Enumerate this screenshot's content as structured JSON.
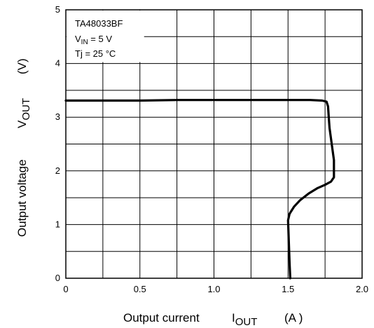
{
  "chart_data": {
    "type": "line",
    "xlabel": {
      "main": "Output current",
      "symbol": "I",
      "subscript": "OUT",
      "unit": "(A )"
    },
    "ylabel": {
      "main": "Output voltage",
      "symbol": "V",
      "subscript": "OUT",
      "unit": "(V)"
    },
    "xlim": [
      0,
      2.0
    ],
    "ylim": [
      0,
      5
    ],
    "x_ticks": [
      "0",
      "0.5",
      "1.0",
      "1.5",
      "2.0"
    ],
    "y_ticks": [
      "0",
      "1",
      "2",
      "3",
      "4",
      "5"
    ],
    "grid": true,
    "minor_grid": true,
    "conditions": {
      "device": "TA48033BF",
      "vin": {
        "symbol": "V",
        "subscript": "IN",
        "rest": " = 5 V"
      },
      "tj": "Tj = 25 °C"
    },
    "series": [
      {
        "x": [
          0,
          0.25,
          0.5,
          0.75,
          1.0,
          1.25,
          1.5,
          1.65,
          1.73,
          1.76,
          1.77,
          1.775,
          1.78,
          1.79,
          1.8,
          1.81,
          1.81,
          1.79,
          1.75,
          1.7,
          1.64,
          1.58,
          1.54,
          1.51,
          1.5,
          1.505,
          1.51,
          1.515
        ],
        "y": [
          3.31,
          3.31,
          3.31,
          3.32,
          3.32,
          3.32,
          3.32,
          3.32,
          3.31,
          3.29,
          3.2,
          3.0,
          2.8,
          2.6,
          2.4,
          2.2,
          1.88,
          1.8,
          1.74,
          1.68,
          1.58,
          1.45,
          1.33,
          1.2,
          1.08,
          0.7,
          0.3,
          0.0
        ],
        "color": "#000000"
      }
    ]
  }
}
